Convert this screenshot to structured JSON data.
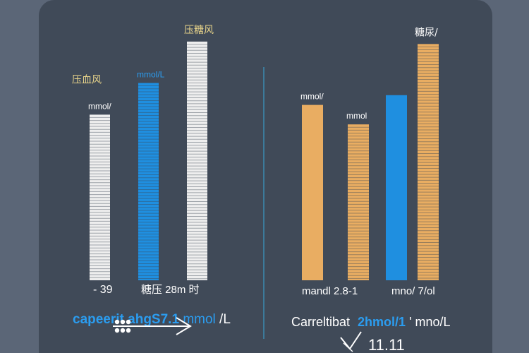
{
  "colors": {
    "background": "#5b6677",
    "panel": "#404a58",
    "white_bar": "#eeeeee",
    "blue_bar": "#1f8fe0",
    "orange_bar": "#e9ad62",
    "divider": "#3a8ab0",
    "label_yellow": "#e8d48a",
    "label_white": "#ffffff",
    "label_blue": "#2b9df0"
  },
  "icons": [
    "arrow-right-icon",
    "check-icon"
  ],
  "chart_data": [
    {
      "type": "bar",
      "ylim": [
        0,
        100
      ],
      "categories": [
        "",
        "",
        ""
      ],
      "bars": [
        {
          "value": 68,
          "color": "#eeeeee",
          "striped": true,
          "label": "mmol/",
          "header": "压血风"
        },
        {
          "value": 81,
          "color": "#1f8fe0",
          "striped": true,
          "label": "mmol/L",
          "header": ""
        },
        {
          "value": 98,
          "color": "#eeeeee",
          "striped": true,
          "label": "",
          "header": "压糖风"
        }
      ],
      "bottom_labels": [
        "- 39",
        "糖压 28m 时"
      ],
      "caption": {
        "part1": "capeerit ahgS7.1",
        "part2": "mmol",
        "part3": "/L"
      }
    },
    {
      "type": "bar",
      "ylim": [
        0,
        100
      ],
      "categories": [
        "",
        "",
        "",
        ""
      ],
      "bars": [
        {
          "value": 72,
          "color": "#e9ad62",
          "striped": false,
          "label": "mmol/",
          "header": ""
        },
        {
          "value": 64,
          "color": "#e9ad62",
          "striped": true,
          "label": "mmol",
          "header": ""
        },
        {
          "value": 76,
          "color": "#1f8fe0",
          "striped": false,
          "label": "",
          "header": ""
        },
        {
          "value": 97,
          "color": "#e9ad62",
          "striped": true,
          "label": "",
          "header": "糖尿/"
        }
      ],
      "bottom_labels": [
        "mandl 2.8-1",
        "mno/ 7/ol"
      ],
      "caption": {
        "part1": "Carreltibat",
        "part2": "2hmol/1",
        "part3": "' mno/L"
      },
      "footer_value": "11.11"
    }
  ]
}
